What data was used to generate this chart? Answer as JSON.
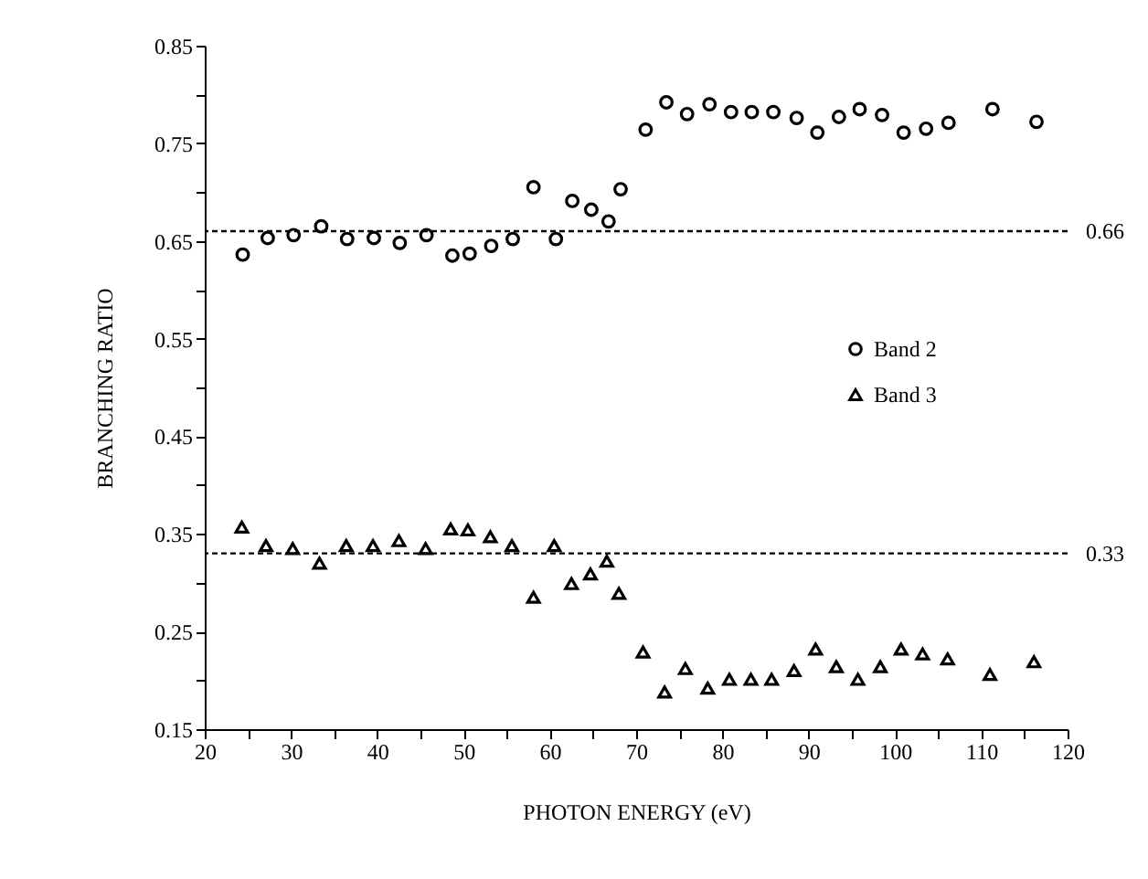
{
  "chart_data": {
    "type": "scatter",
    "xlabel": "PHOTON ENERGY (eV)",
    "ylabel": "BRANCHING RATIO",
    "xlim": [
      20,
      120
    ],
    "ylim": [
      0.15,
      0.85
    ],
    "xticks": [
      20,
      {
        "value": 25,
        "label": null
      },
      30,
      {
        "value": 35,
        "label": null
      },
      40,
      {
        "value": 45,
        "label": null
      },
      50,
      {
        "value": 55,
        "label": null
      },
      60,
      {
        "value": 65,
        "label": null
      },
      70,
      {
        "value": 75,
        "label": null
      },
      80,
      {
        "value": 85,
        "label": null
      },
      90,
      {
        "value": 95,
        "label": null
      },
      100,
      {
        "value": 105,
        "label": null
      },
      110,
      {
        "value": 115,
        "label": null
      },
      120
    ],
    "yticks": [
      {
        "value": 0.15,
        "label": "0.15"
      },
      {
        "value": 0.2,
        "label": null
      },
      {
        "value": 0.25,
        "label": "0.25"
      },
      {
        "value": 0.3,
        "label": null
      },
      {
        "value": 0.35,
        "label": "0.35"
      },
      {
        "value": 0.4,
        "label": null
      },
      {
        "value": 0.45,
        "label": "0.45"
      },
      {
        "value": 0.5,
        "label": null
      },
      {
        "value": 0.55,
        "label": "0.55"
      },
      {
        "value": 0.6,
        "label": null
      },
      {
        "value": 0.65,
        "label": "0.65"
      },
      {
        "value": 0.7,
        "label": null
      },
      {
        "value": 0.75,
        "label": "0.75"
      },
      {
        "value": 0.8,
        "label": null
      },
      {
        "value": 0.85,
        "label": "0.85"
      }
    ],
    "grid": false,
    "legend": "right",
    "series": [
      {
        "name": "Band 2",
        "color": "#000000",
        "marker": "circle",
        "x": [
          24.4,
          27.3,
          30.3,
          33.5,
          36.5,
          39.6,
          42.6,
          45.7,
          48.7,
          50.7,
          53.2,
          55.7,
          58.1,
          60.7,
          62.6,
          64.8,
          66.8,
          68.2,
          71.1,
          73.5,
          75.9,
          78.5,
          81.0,
          83.4,
          85.9,
          88.6,
          91.0,
          93.5,
          95.9,
          98.5,
          101.0,
          103.6,
          106.2,
          111.3,
          116.4
        ],
        "values": [
          0.636,
          0.653,
          0.656,
          0.665,
          0.652,
          0.653,
          0.648,
          0.656,
          0.635,
          0.637,
          0.645,
          0.652,
          0.705,
          0.652,
          0.691,
          0.682,
          0.67,
          0.703,
          0.764,
          0.792,
          0.78,
          0.79,
          0.782,
          0.782,
          0.782,
          0.776,
          0.761,
          0.777,
          0.785,
          0.779,
          0.761,
          0.765,
          0.771,
          0.785,
          0.772
        ]
      },
      {
        "name": "Band 3",
        "color": "#000000",
        "marker": "triangle",
        "x": [
          24.3,
          27.1,
          30.2,
          33.3,
          36.4,
          39.5,
          42.5,
          45.6,
          48.5,
          50.5,
          53.1,
          55.6,
          58.1,
          60.5,
          62.5,
          64.7,
          66.6,
          68.0,
          70.8,
          73.3,
          75.7,
          78.3,
          80.8,
          83.3,
          85.7,
          88.3,
          90.8,
          93.2,
          95.7,
          98.3,
          100.7,
          103.2,
          106.1,
          111.0,
          116.1
        ],
        "values": [
          0.357,
          0.338,
          0.335,
          0.32,
          0.338,
          0.338,
          0.343,
          0.335,
          0.355,
          0.354,
          0.347,
          0.338,
          0.285,
          0.338,
          0.299,
          0.309,
          0.322,
          0.289,
          0.229,
          0.188,
          0.212,
          0.192,
          0.201,
          0.201,
          0.201,
          0.21,
          0.232,
          0.214,
          0.201,
          0.214,
          0.232,
          0.227,
          0.222,
          0.206,
          0.219
        ]
      }
    ],
    "ref_lines": [
      {
        "axis": "y",
        "value": 0.66,
        "label": "0.66",
        "line_style": "dashed"
      },
      {
        "axis": "y",
        "value": 0.33,
        "label": "0.33",
        "line_style": "dashed"
      }
    ]
  }
}
